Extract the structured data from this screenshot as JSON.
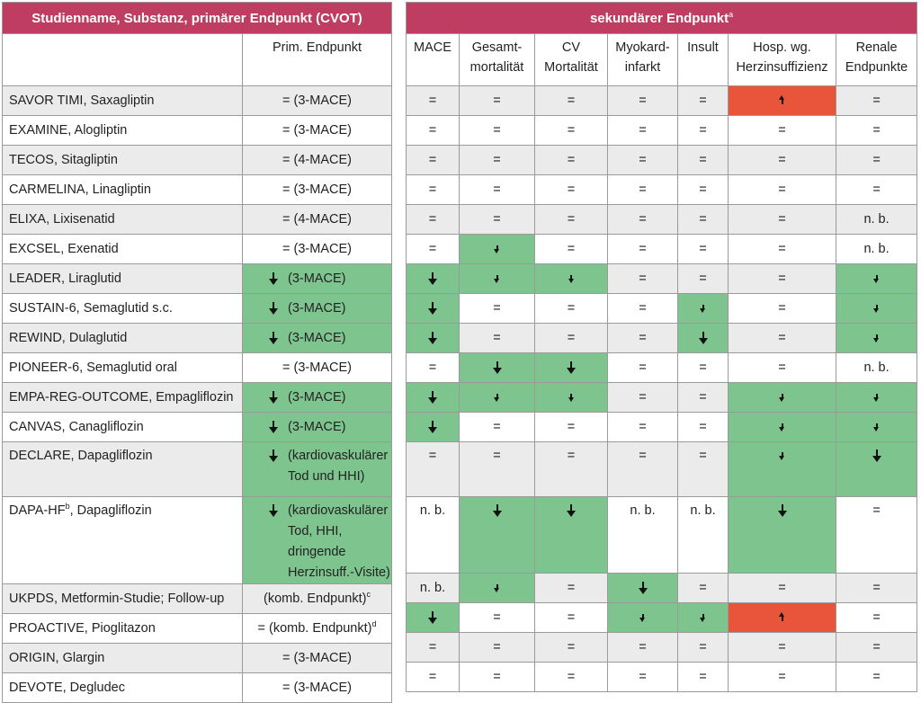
{
  "header": {
    "left_title": "Studienname, Substanz, primärer Endpunkt (CVOT)",
    "right_title": "sekundärer Endpunkt",
    "right_title_sup": "a"
  },
  "columns": {
    "prim": "Prim. Endpunkt",
    "secondary": [
      "MACE",
      "Gesamt-\nmortalität",
      "CV\nMortalität",
      "Myokard-\ninfarkt",
      "Insult",
      "Hosp. wg.\nHerzinsuffizienz",
      "Renale\nEndpunkte"
    ]
  },
  "colors": {
    "header": "#c03d62",
    "decrease": "#7ec48f",
    "increase": "#e8553a",
    "row_shade": "#ebebeb"
  },
  "legend_symbols": {
    "down": "decrease",
    "up": "increase",
    "eq": "="
  },
  "rows": [
    {
      "name": "SAVOR TIMI, Saxagliptin",
      "name_sup": "",
      "prim": "= (3-MACE)",
      "prim_arrow": "",
      "prim_sup": "",
      "cells": [
        "=",
        "=",
        "=",
        "=",
        "=",
        "up-red",
        "="
      ]
    },
    {
      "name": "EXAMINE, Alogliptin",
      "name_sup": "",
      "prim": "= (3-MACE)",
      "prim_arrow": "",
      "prim_sup": "",
      "cells": [
        "=",
        "=",
        "=",
        "=",
        "=",
        "=",
        "="
      ]
    },
    {
      "name": "TECOS, Sitagliptin",
      "name_sup": "",
      "prim": "= (4-MACE)",
      "prim_arrow": "",
      "prim_sup": "",
      "cells": [
        "=",
        "=",
        "=",
        "=",
        "=",
        "=",
        "="
      ]
    },
    {
      "name": "CARMELINA, Linagliptin",
      "name_sup": "",
      "prim": "= (3-MACE)",
      "prim_arrow": "",
      "prim_sup": "",
      "cells": [
        "=",
        "=",
        "=",
        "=",
        "=",
        "=",
        "="
      ]
    },
    {
      "name": "ELIXA, Lixisenatid",
      "name_sup": "",
      "prim": "= (4-MACE)",
      "prim_arrow": "",
      "prim_sup": "",
      "cells": [
        "=",
        "=",
        "=",
        "=",
        "=",
        "=",
        "n. b."
      ]
    },
    {
      "name": "EXCSEL, Exenatid",
      "name_sup": "",
      "prim": "= (3-MACE)",
      "prim_arrow": "",
      "prim_sup": "",
      "cells": [
        "=",
        "down-small",
        "=",
        "=",
        "=",
        "=",
        "n. b."
      ]
    },
    {
      "name": "LEADER, Liraglutid",
      "name_sup": "",
      "prim": "(3-MACE)",
      "prim_arrow": "down",
      "prim_sup": "",
      "cells": [
        "down-big",
        "down-small",
        "down-small",
        "=",
        "=",
        "=",
        "down-small"
      ]
    },
    {
      "name": "SUSTAIN-6, Semaglutid s.c.",
      "name_sup": "",
      "prim": "(3-MACE)",
      "prim_arrow": "down",
      "prim_sup": "",
      "cells": [
        "down-big",
        "=",
        "=",
        "=",
        "down-small",
        "=",
        "down-small"
      ]
    },
    {
      "name": "REWIND, Dulaglutid",
      "name_sup": "",
      "prim": "(3-MACE)",
      "prim_arrow": "down",
      "prim_sup": "",
      "cells": [
        "down-big",
        "=",
        "=",
        "=",
        "down-big",
        "=",
        "down-small"
      ]
    },
    {
      "name": "PIONEER-6, Semaglutid oral",
      "name_sup": "",
      "prim": "= (3-MACE)",
      "prim_arrow": "",
      "prim_sup": "",
      "cells": [
        "=",
        "down-big",
        "down-big",
        "=",
        "=",
        "=",
        "n. b."
      ]
    },
    {
      "name": "EMPA-REG-OUTCOME, Empagliflozin",
      "name_sup": "",
      "prim": "(3-MACE)",
      "prim_arrow": "down",
      "prim_sup": "",
      "cells": [
        "down-big",
        "down-small",
        "down-small",
        "=",
        "=",
        "down-small",
        "down-small"
      ]
    },
    {
      "name": "CANVAS, Canagliflozin",
      "name_sup": "",
      "prim": "(3-MACE)",
      "prim_arrow": "down",
      "prim_sup": "",
      "cells": [
        "down-big",
        "=",
        "=",
        "=",
        "=",
        "down-small",
        "down-small"
      ]
    },
    {
      "name": "DECLARE, Dapagliflozin",
      "name_sup": "",
      "prim": "(kardiovaskulärer Tod und HHI)",
      "prim_arrow": "down",
      "prim_sup": "",
      "cells": [
        "=",
        "=",
        "=",
        "=",
        "=",
        "down-small",
        "down-big"
      ]
    },
    {
      "name": "DAPA-HF",
      "name_sup": "b",
      "name_rest": ", Dapagliflozin",
      "prim": "(kardiovaskulärer Tod, HHI, dringende Herzinsuff.-Visite)",
      "prim_arrow": "down",
      "prim_sup": "",
      "cells": [
        "n. b.",
        "down-big",
        "down-big",
        "n. b.",
        "n. b.",
        "down-big",
        "="
      ]
    },
    {
      "name": "UKPDS, Metformin-Studie; Follow-up",
      "name_sup": "",
      "prim": "(komb. Endpunkt)",
      "prim_arrow": "",
      "prim_sup": "c",
      "cells": [
        "n. b.",
        "down-small",
        "=",
        "down-big",
        "=",
        "=",
        "="
      ]
    },
    {
      "name": "PROACTIVE, Pioglitazon",
      "name_sup": "",
      "prim": "= (komb. Endpunkt)",
      "prim_arrow": "",
      "prim_sup": "d",
      "cells": [
        "down-big",
        "=",
        "=",
        "down-small",
        "down-small",
        "up-red",
        "="
      ]
    },
    {
      "name": "ORIGIN, Glargin",
      "name_sup": "",
      "prim": "= (3-MACE)",
      "prim_arrow": "",
      "prim_sup": "",
      "cells": [
        "=",
        "=",
        "=",
        "=",
        "=",
        "=",
        "="
      ]
    },
    {
      "name": "DEVOTE, Degludec",
      "name_sup": "",
      "prim": "= (3-MACE)",
      "prim_arrow": "",
      "prim_sup": "",
      "cells": [
        "=",
        "=",
        "=",
        "=",
        "=",
        "=",
        "="
      ]
    }
  ]
}
